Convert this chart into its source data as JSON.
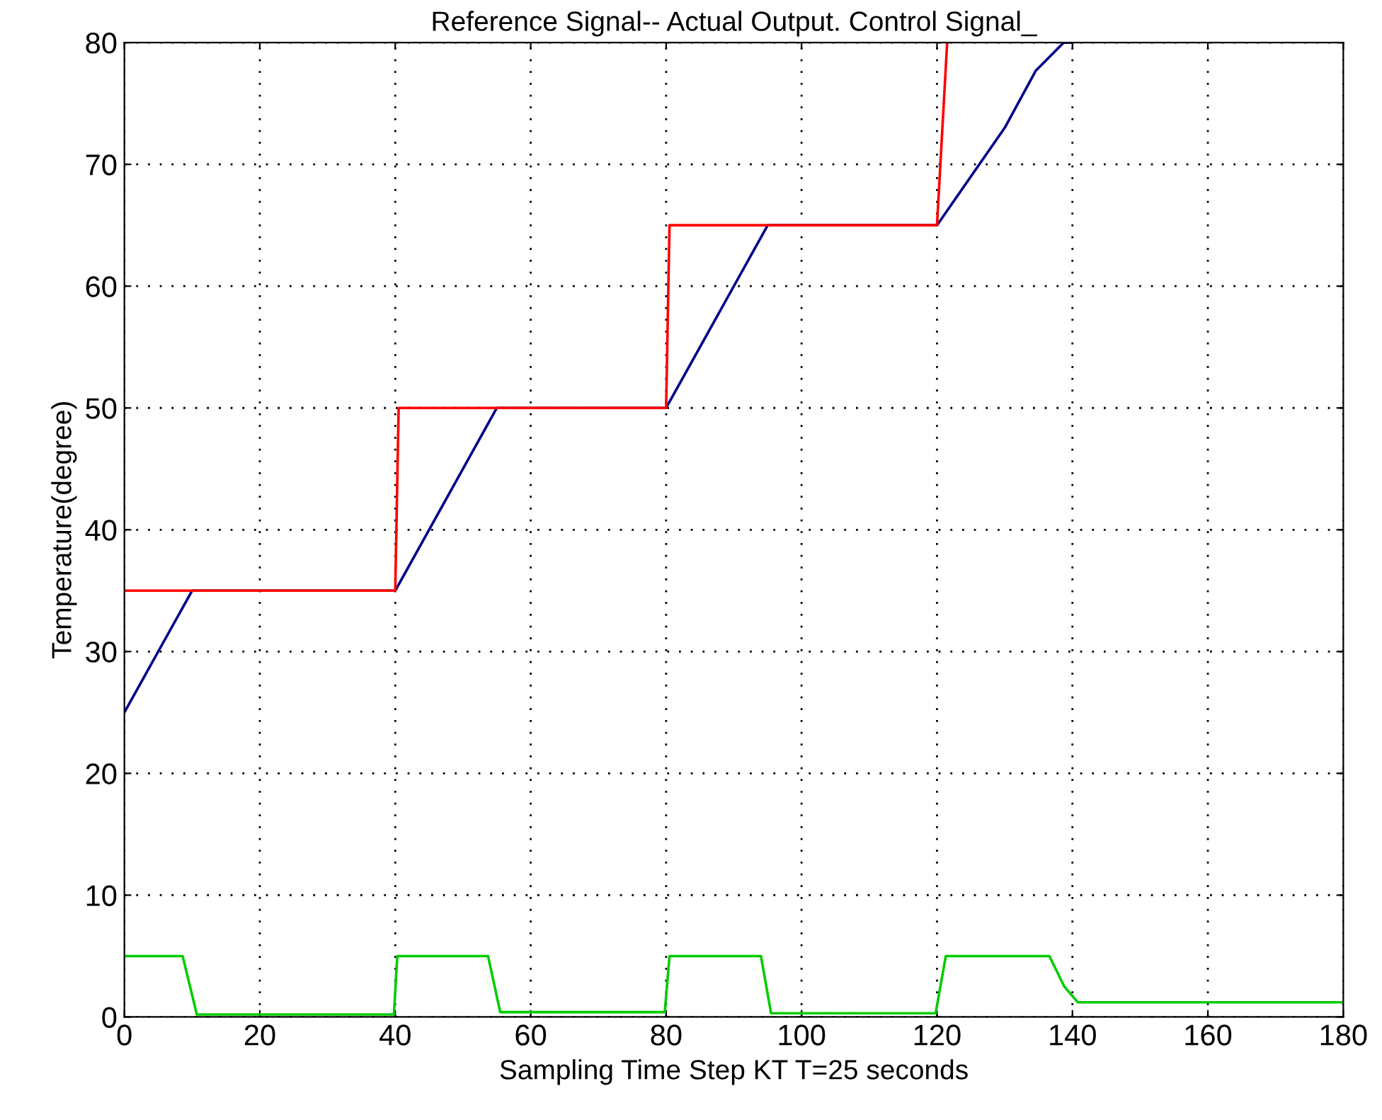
{
  "chart_data": {
    "type": "line",
    "title": "Reference Signal-- Actual Output. Control Signal_",
    "xlabel": "Sampling Time Step KT T=25 seconds",
    "ylabel": "Temperature(degree)",
    "xlim": [
      0,
      180
    ],
    "ylim": [
      0,
      80
    ],
    "xticks": [
      0,
      20,
      40,
      60,
      80,
      100,
      120,
      140,
      160,
      180
    ],
    "yticks": [
      0,
      10,
      20,
      30,
      40,
      50,
      60,
      70,
      80
    ],
    "grid": true,
    "line_style": "solid",
    "marker": "none",
    "series": [
      {
        "color": "#00008b",
        "x": [
          0,
          10,
          40,
          55,
          80,
          95,
          120,
          130,
          134.6,
          138.7,
          140
        ],
        "values": [
          25,
          35,
          35,
          50,
          50,
          65,
          65,
          73,
          77.7,
          80,
          80
        ]
      },
      {
        "color": "#ff0000",
        "x": [
          0,
          40,
          40.5,
          80,
          80.5,
          120,
          121.5
        ],
        "values": [
          35,
          35,
          50,
          50,
          65,
          65,
          80
        ]
      },
      {
        "color": "#00cc00",
        "x": [
          0,
          8.6,
          10.7,
          39.8,
          40.3,
          53.7,
          55.5,
          79.8,
          80.5,
          94,
          95.5,
          119.8,
          121.3,
          136.6,
          138.8,
          140.8,
          180
        ],
        "values": [
          5,
          5,
          0.2,
          0.2,
          5,
          5,
          0.4,
          0.4,
          5,
          5,
          0.3,
          0.3,
          5,
          5,
          2.5,
          1.2,
          1.2
        ]
      }
    ]
  }
}
